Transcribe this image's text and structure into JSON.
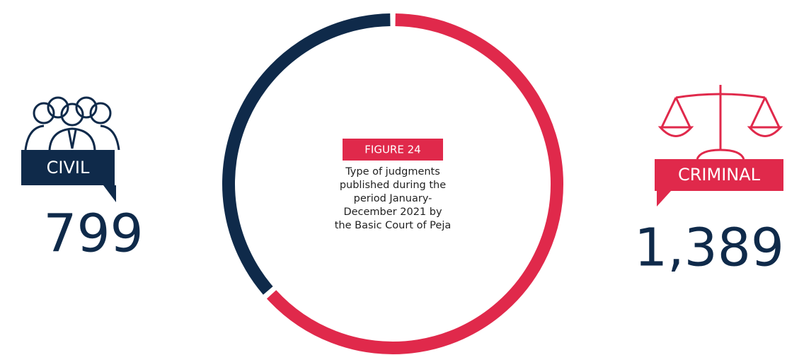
{
  "chart_data": {
    "type": "pie",
    "donut": true,
    "figure_label": "FIGURE 24",
    "title": "Type of judgments published during the period January-December 2021 by the Basic Court of Peja",
    "categories": [
      "CIVIL",
      "CRIMINAL"
    ],
    "values": [
      799,
      1389
    ],
    "value_labels": [
      "799",
      "1,389"
    ],
    "colors": [
      "#0f2a4a",
      "#e0294b"
    ]
  }
}
